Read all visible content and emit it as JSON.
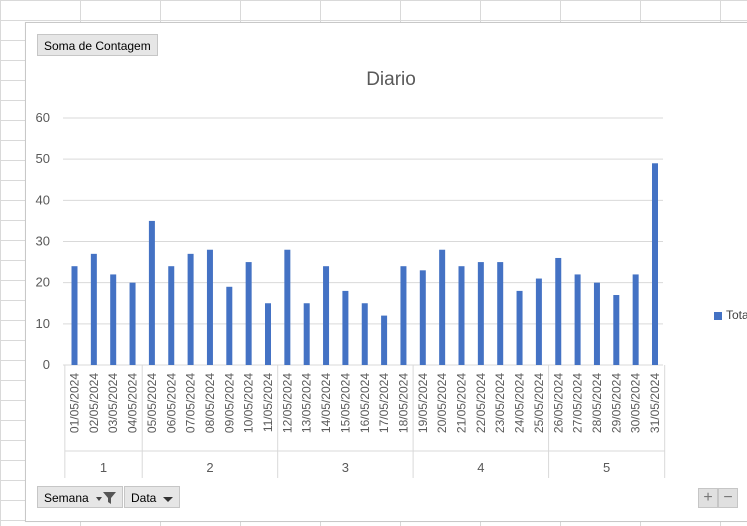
{
  "chart_buttons": {
    "value_field": "Soma de Contagem",
    "axis_field_1": "Semana",
    "axis_field_2": "Data",
    "zoom_in": "+",
    "zoom_out": "−"
  },
  "colors": {
    "bar": "#4472c4",
    "grid": "#d9d9d9",
    "text": "#595959"
  },
  "chart_data": {
    "type": "bar",
    "title": "Diario",
    "xlabel": "",
    "ylabel": "",
    "ylim": [
      0,
      60
    ],
    "yticks": [
      0,
      10,
      20,
      30,
      40,
      50,
      60
    ],
    "grid": true,
    "legend_position": "right",
    "categories": [
      "01/05/2024",
      "02/05/2024",
      "03/05/2024",
      "04/05/2024",
      "05/05/2024",
      "06/05/2024",
      "07/05/2024",
      "08/05/2024",
      "09/05/2024",
      "10/05/2024",
      "11/05/2024",
      "12/05/2024",
      "13/05/2024",
      "14/05/2024",
      "15/05/2024",
      "16/05/2024",
      "17/05/2024",
      "18/05/2024",
      "19/05/2024",
      "20/05/2024",
      "21/05/2024",
      "22/05/2024",
      "23/05/2024",
      "24/05/2024",
      "25/05/2024",
      "26/05/2024",
      "27/05/2024",
      "28/05/2024",
      "29/05/2024",
      "30/05/2024",
      "31/05/2024"
    ],
    "series": [
      {
        "name": "Total",
        "values": [
          24,
          27,
          22,
          20,
          35,
          24,
          27,
          28,
          19,
          25,
          15,
          28,
          15,
          24,
          18,
          15,
          12,
          24,
          23,
          28,
          24,
          25,
          25,
          18,
          21,
          26,
          22,
          20,
          17,
          22,
          49
        ]
      }
    ],
    "groups": [
      {
        "label": "1",
        "count": 4
      },
      {
        "label": "2",
        "count": 7
      },
      {
        "label": "3",
        "count": 7
      },
      {
        "label": "4",
        "count": 7
      },
      {
        "label": "5",
        "count": 6
      }
    ]
  }
}
